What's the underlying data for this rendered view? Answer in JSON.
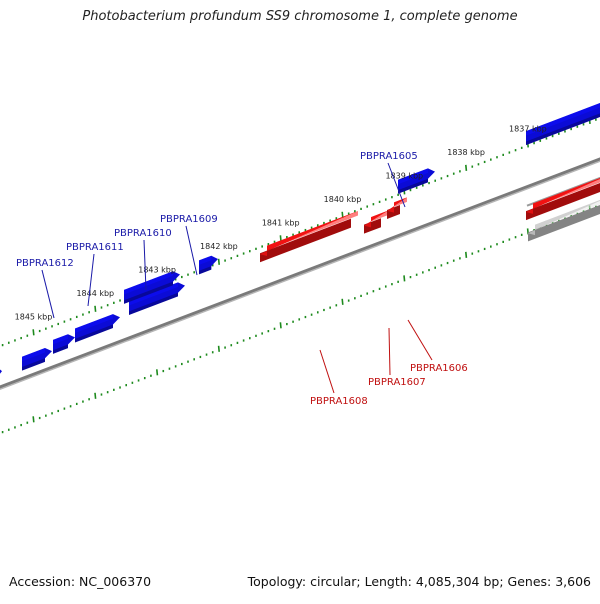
{
  "title": "Photobacterium profundum SS9 chromosome 1, complete genome",
  "accession_text": "Accession: NC_006370",
  "summary_text": "Topology: circular; Length: 4,085,304 bp; Genes: 3,606",
  "colors": {
    "forward_gene": "#0b0bd6",
    "reverse_gene": "#e01010",
    "other_gene": "#b8b8b8",
    "backbone": "#7a7a7a",
    "ticks": "#1d8a1d",
    "forward_label": "#1a1aa8",
    "reverse_label": "#c01010"
  },
  "scale_labels": [
    "1845 kbp",
    "1844 kbp",
    "1843 kbp",
    "1842 kbp",
    "1841 kbp",
    "1840 kbp",
    "1839 kbp",
    "1838 kbp",
    "1837 kbp"
  ],
  "gene_labels": [
    {
      "text": "PBPRA1612",
      "strand": "forward"
    },
    {
      "text": "PBPRA1611",
      "strand": "forward"
    },
    {
      "text": "PBPRA1610",
      "strand": "forward"
    },
    {
      "text": "PBPRA1609",
      "strand": "forward"
    },
    {
      "text": "PBPRA1605",
      "strand": "forward"
    },
    {
      "text": "PBPRA1608",
      "strand": "reverse"
    },
    {
      "text": "PBPRA1607",
      "strand": "reverse"
    },
    {
      "text": "PBPRA1606",
      "strand": "reverse"
    }
  ]
}
